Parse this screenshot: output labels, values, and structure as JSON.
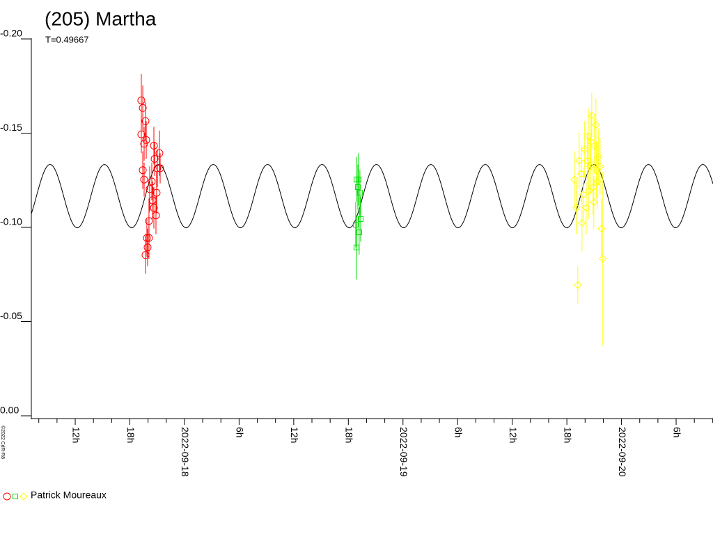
{
  "chart_data": {
    "type": "scatter",
    "title": "(205) Martha",
    "subtitle": "T=0.49667",
    "credit": "©2022 CdR-R8",
    "legend": {
      "label": "Patrick Moureaux"
    },
    "xlim": [
      7.18,
      82.05
    ],
    "ylim": [
      -0.2,
      0.0
    ],
    "yticks": [
      {
        "value": -0.2,
        "label": "-0.20"
      },
      -0.15,
      {
        "value": -0.1,
        "label": "-0.10"
      },
      -0.05,
      {
        "value": 0.0,
        "label": "0.00"
      }
    ],
    "xticks": [
      {
        "value": 12,
        "label": "12h"
      },
      {
        "value": 18,
        "label": "18h"
      },
      {
        "value": 24,
        "label": "2022-09-18"
      },
      {
        "value": 30,
        "label": "6h"
      },
      {
        "value": 36,
        "label": "12h"
      },
      {
        "value": 42,
        "label": "18h"
      },
      {
        "value": 48,
        "label": "2022-09-19"
      },
      {
        "value": 54,
        "label": "6h"
      },
      {
        "value": 60,
        "label": "12h"
      },
      {
        "value": 66,
        "label": "18h"
      },
      {
        "value": 72,
        "label": "2022-09-20"
      },
      {
        "value": 78,
        "label": "6h"
      }
    ],
    "xminorticks": [
      8,
      10,
      14,
      16,
      20,
      22,
      26,
      28,
      32,
      34,
      38,
      40,
      44,
      46,
      50,
      52,
      56,
      58,
      62,
      64,
      68,
      70,
      74,
      76,
      80,
      82
    ],
    "fit": {
      "mean": -0.1162,
      "amplitude": 0.0168,
      "period": 5.975,
      "peak": 15.21,
      "color": "#000000"
    },
    "series": [
      {
        "color": "#ff0000",
        "marker": "circle",
        "x": [
          19.26,
          19.42,
          19.72,
          19.26,
          19.57,
          19.8,
          19.42,
          19.57,
          20.64,
          21.25,
          20.72,
          21.02,
          21.33,
          20.41,
          20.94,
          20.18,
          20.49,
          20.64,
          20.87,
          20.1,
          19.87,
          20.1,
          19.95,
          19.72
        ],
        "values": [
          -0.167,
          -0.163,
          -0.156,
          -0.149,
          -0.144,
          -0.146,
          -0.13,
          -0.125,
          -0.143,
          -0.139,
          -0.136,
          -0.131,
          -0.131,
          -0.124,
          -0.118,
          -0.12,
          -0.114,
          -0.11,
          -0.106,
          -0.103,
          -0.094,
          -0.094,
          -0.089,
          -0.085
        ],
        "errors": [
          0.014,
          0.012,
          0.01,
          0.01,
          0.009,
          0.01,
          0.01,
          0.009,
          0.01,
          0.012,
          0.009,
          0.01,
          0.008,
          0.01,
          0.011,
          0.012,
          0.01,
          0.011,
          0.01,
          0.012,
          0.01,
          0.011,
          0.01,
          0.01
        ]
      },
      {
        "color": "#00dd00",
        "marker": "square",
        "x": [
          42.89,
          43.12,
          43.27,
          43.04,
          43.35,
          42.81,
          43.19,
          42.89
        ],
        "values": [
          -0.125,
          -0.125,
          -0.118,
          -0.121,
          -0.104,
          -0.101,
          -0.097,
          -0.089
        ],
        "errors": [
          0.012,
          0.014,
          0.012,
          0.012,
          0.012,
          0.012,
          0.012,
          0.017
        ]
      },
      {
        "color": "#ffff00",
        "marker": "diamond",
        "x": [
          66.82,
          67.2,
          67.35,
          67.58,
          67.81,
          67.96,
          68.12,
          68.35,
          68.57,
          68.73,
          68.88,
          69.03,
          69.19,
          69.34,
          69.49,
          69.65,
          69.8,
          69.95,
          67.05,
          67.66,
          68.42,
          68.96,
          69.26,
          68.27,
          68.65
        ],
        "values": [
          -0.125,
          -0.069,
          -0.135,
          -0.128,
          -0.117,
          -0.141,
          -0.11,
          -0.148,
          -0.132,
          -0.159,
          -0.121,
          -0.143,
          -0.154,
          -0.124,
          -0.137,
          -0.132,
          -0.099,
          -0.083,
          -0.11,
          -0.102,
          -0.119,
          -0.113,
          -0.13,
          -0.135,
          -0.145
        ],
        "errors": [
          0.015,
          0.01,
          0.015,
          0.015,
          0.014,
          0.015,
          0.014,
          0.015,
          0.015,
          0.012,
          0.015,
          0.015,
          0.014,
          0.015,
          0.015,
          0.015,
          0.015,
          0.046,
          0.014,
          0.015,
          0.015,
          0.014,
          0.015,
          0.015,
          0.015
        ]
      }
    ]
  }
}
